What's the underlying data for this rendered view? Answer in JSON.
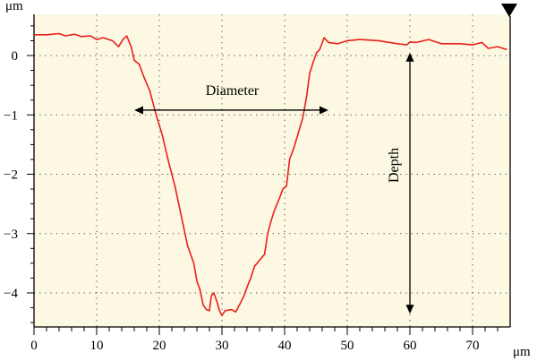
{
  "chart_data": {
    "type": "line",
    "title": "",
    "xlabel": "μm",
    "ylabel": "μm",
    "xlim": [
      0,
      75.5
    ],
    "ylim": [
      -4.6,
      0.55
    ],
    "x_ticks": [
      0,
      10,
      20,
      30,
      40,
      50,
      60,
      70
    ],
    "y_ticks": [
      0,
      -1,
      -2,
      -3,
      -4
    ],
    "x_tick_labels": [
      "0",
      "10",
      "20",
      "30",
      "40",
      "50",
      "60",
      "70"
    ],
    "y_tick_labels": [
      "0",
      "−1",
      "−2",
      "−3",
      "−4"
    ],
    "grid": true,
    "series": [
      {
        "color": "#e8201a",
        "points": [
          [
            0,
            0.35
          ],
          [
            2,
            0.35
          ],
          [
            4,
            0.37
          ],
          [
            5,
            0.33
          ],
          [
            6.5,
            0.36
          ],
          [
            7.5,
            0.32
          ],
          [
            9,
            0.33
          ],
          [
            10,
            0.27
          ],
          [
            11,
            0.3
          ],
          [
            12.5,
            0.25
          ],
          [
            13.5,
            0.15
          ],
          [
            14.2,
            0.27
          ],
          [
            14.8,
            0.33
          ],
          [
            15.5,
            0.15
          ],
          [
            16,
            -0.08
          ],
          [
            16.8,
            -0.15
          ],
          [
            17.5,
            -0.35
          ],
          [
            18.5,
            -0.6
          ],
          [
            19.5,
            -1.0
          ],
          [
            20.5,
            -1.35
          ],
          [
            21.5,
            -1.8
          ],
          [
            22.5,
            -2.2
          ],
          [
            23.5,
            -2.7
          ],
          [
            24.5,
            -3.2
          ],
          [
            25.5,
            -3.5
          ],
          [
            26,
            -3.8
          ],
          [
            26.5,
            -3.95
          ],
          [
            27,
            -4.2
          ],
          [
            27.5,
            -4.28
          ],
          [
            28,
            -4.3
          ],
          [
            28.3,
            -4.05
          ],
          [
            28.7,
            -4.0
          ],
          [
            29.2,
            -4.15
          ],
          [
            29.6,
            -4.3
          ],
          [
            30,
            -4.38
          ],
          [
            30.5,
            -4.3
          ],
          [
            31.5,
            -4.28
          ],
          [
            32.2,
            -4.32
          ],
          [
            32.8,
            -4.2
          ],
          [
            33.5,
            -4.05
          ],
          [
            34.2,
            -3.85
          ],
          [
            34.6,
            -3.75
          ],
          [
            35.2,
            -3.55
          ],
          [
            36,
            -3.45
          ],
          [
            36.8,
            -3.35
          ],
          [
            37.3,
            -3.0
          ],
          [
            37.8,
            -2.8
          ],
          [
            38.4,
            -2.6
          ],
          [
            39.2,
            -2.4
          ],
          [
            39.7,
            -2.25
          ],
          [
            40.3,
            -2.2
          ],
          [
            40.8,
            -1.75
          ],
          [
            41.5,
            -1.55
          ],
          [
            42.2,
            -1.3
          ],
          [
            42.9,
            -1.05
          ],
          [
            43.5,
            -0.7
          ],
          [
            44,
            -0.3
          ],
          [
            44.6,
            -0.1
          ],
          [
            45.1,
            0.05
          ],
          [
            45.6,
            0.1
          ],
          [
            46.3,
            0.3
          ],
          [
            47,
            0.22
          ],
          [
            48.5,
            0.2
          ],
          [
            50,
            0.25
          ],
          [
            52,
            0.27
          ],
          [
            55,
            0.25
          ],
          [
            58,
            0.2
          ],
          [
            59.5,
            0.18
          ],
          [
            60,
            0.23
          ],
          [
            61,
            0.22
          ],
          [
            63,
            0.27
          ],
          [
            65,
            0.2
          ],
          [
            68,
            0.2
          ],
          [
            70,
            0.18
          ],
          [
            71.5,
            0.22
          ],
          [
            72.5,
            0.12
          ],
          [
            74,
            0.15
          ],
          [
            75.5,
            0.1
          ]
        ]
      }
    ],
    "annotations": [
      {
        "text": "Diameter",
        "type": "double-arrow-horizontal",
        "y": -0.92,
        "x_from": 16,
        "x_to": 47
      },
      {
        "text": "Depth",
        "type": "double-arrow-vertical",
        "x": 60,
        "y_from": 0.05,
        "y_to": -4.35
      }
    ],
    "plot_background": "#fdf8e2",
    "marker_top_right": "down-triangle"
  }
}
